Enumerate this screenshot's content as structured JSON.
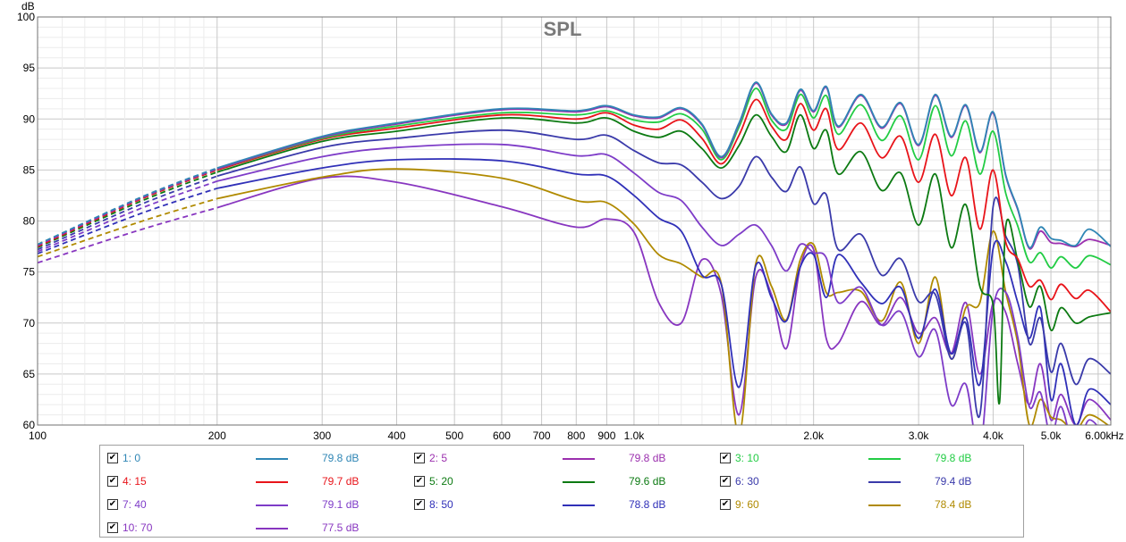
{
  "chart_data": {
    "type": "line",
    "title": "SPL",
    "ylabel": "dB",
    "xlabel_unit": "Hz",
    "x_scale": "log",
    "xlim": [
      100,
      6300
    ],
    "ylim": [
      60,
      100
    ],
    "grid": true,
    "legend_placement": "bottom",
    "y_ticks": [
      "60",
      "65",
      "70",
      "75",
      "80",
      "85",
      "90",
      "95",
      "100"
    ],
    "x_ticks": [
      {
        "v": 100,
        "label": "100"
      },
      {
        "v": 200,
        "label": "200"
      },
      {
        "v": 300,
        "label": "300"
      },
      {
        "v": 400,
        "label": "400"
      },
      {
        "v": 500,
        "label": "500"
      },
      {
        "v": 600,
        "label": "600"
      },
      {
        "v": 700,
        "label": "700"
      },
      {
        "v": 800,
        "label": "800"
      },
      {
        "v": 900,
        "label": "900"
      },
      {
        "v": 1000,
        "label": "1.0k"
      },
      {
        "v": 2000,
        "label": "2.0k"
      },
      {
        "v": 3000,
        "label": "3.0k"
      },
      {
        "v": 4000,
        "label": "4.0k"
      },
      {
        "v": 5000,
        "label": "5.0k"
      },
      {
        "v": 6000,
        "label": "6.00k"
      }
    ],
    "x_minor": [
      110,
      120,
      130,
      140,
      150,
      160,
      170,
      180,
      190,
      1100,
      1200,
      1300,
      1400,
      1500,
      1600,
      1700,
      1800,
      1900
    ],
    "dashed_until_hz": 200,
    "series": [
      {
        "name": "1: 0",
        "value": "79.8 dB",
        "color": "#2f86b5",
        "x": [
          100,
          150,
          200,
          300,
          400,
          600,
          800,
          900,
          1000,
          1100,
          1200,
          1300,
          1400,
          1500,
          1600,
          1700,
          1800,
          1900,
          2000,
          2100,
          2200,
          2400,
          2600,
          2800,
          3000,
          3200,
          3400,
          3600,
          3800,
          4000,
          4200,
          4400,
          4600,
          4800,
          5000,
          5200,
          5500,
          5800,
          6300
        ],
        "y": [
          77.7,
          82.4,
          85.2,
          88.3,
          89.6,
          91.0,
          90.8,
          91.3,
          90.4,
          90.2,
          91.1,
          89.5,
          86.3,
          89.6,
          93.6,
          90.5,
          89.6,
          92.9,
          90.8,
          93.2,
          89.3,
          92.4,
          89.2,
          91.6,
          87.5,
          92.4,
          88.3,
          91.4,
          86.8,
          90.7,
          84.5,
          81.2,
          77.4,
          79.4,
          78.3,
          78.1,
          77.6,
          79.2,
          77.5
        ]
      },
      {
        "name": "2: 5",
        "value": "79.8 dB",
        "color": "#9b2fae",
        "x": [
          100,
          150,
          200,
          300,
          400,
          600,
          800,
          900,
          1000,
          1100,
          1200,
          1300,
          1400,
          1500,
          1600,
          1700,
          1800,
          1900,
          2000,
          2100,
          2200,
          2400,
          2600,
          2800,
          3000,
          3200,
          3400,
          3600,
          3800,
          4000,
          4200,
          4400,
          4600,
          4800,
          5000,
          5200,
          5500,
          5800,
          6300
        ],
        "y": [
          77.6,
          82.3,
          85.1,
          88.2,
          89.5,
          90.9,
          90.7,
          91.2,
          90.3,
          90.1,
          91.0,
          89.4,
          86.2,
          89.5,
          93.5,
          90.4,
          89.5,
          92.8,
          90.7,
          93.1,
          89.2,
          92.3,
          89.1,
          91.5,
          87.4,
          92.3,
          88.2,
          91.3,
          86.7,
          90.6,
          84.4,
          81.1,
          77.3,
          79.0,
          77.9,
          77.8,
          77.5,
          78.2,
          77.6
        ]
      },
      {
        "name": "3: 10",
        "value": "79.8 dB",
        "color": "#22cc44",
        "x": [
          100,
          150,
          200,
          300,
          400,
          600,
          800,
          900,
          1000,
          1100,
          1200,
          1300,
          1400,
          1500,
          1600,
          1700,
          1800,
          1900,
          2000,
          2100,
          2200,
          2400,
          2600,
          2800,
          3000,
          3200,
          3400,
          3600,
          3800,
          4000,
          4200,
          4400,
          4600,
          4800,
          5000,
          5200,
          5500,
          5800,
          6300
        ],
        "y": [
          77.7,
          82.3,
          85.1,
          88.1,
          89.3,
          90.6,
          90.4,
          90.8,
          89.9,
          89.7,
          90.5,
          89.0,
          86.0,
          89.2,
          93.0,
          89.9,
          89.0,
          92.4,
          90.1,
          92.3,
          88.5,
          91.4,
          87.9,
          90.3,
          86.0,
          91.3,
          86.4,
          89.8,
          84.6,
          88.8,
          82.7,
          79.5,
          76.0,
          76.9,
          75.4,
          76.5,
          75.4,
          76.6,
          75.7
        ]
      },
      {
        "name": "4: 15",
        "value": "79.7 dB",
        "color": "#e8141a",
        "x": [
          100,
          150,
          200,
          300,
          400,
          600,
          800,
          900,
          1000,
          1100,
          1200,
          1300,
          1400,
          1500,
          1600,
          1700,
          1800,
          1900,
          2000,
          2100,
          2200,
          2400,
          2600,
          2800,
          3000,
          3200,
          3400,
          3600,
          3800,
          4000,
          4200,
          4400,
          4600,
          4800,
          5000,
          5200,
          5500,
          5800,
          6300
        ],
        "y": [
          77.5,
          82.2,
          85.0,
          88.0,
          89.1,
          90.4,
          90.0,
          90.6,
          89.4,
          89.0,
          89.9,
          88.1,
          85.6,
          88.4,
          91.9,
          89.3,
          88.0,
          91.5,
          88.9,
          91.0,
          87.0,
          89.6,
          86.2,
          88.3,
          83.8,
          88.5,
          82.5,
          86.2,
          79.2,
          85.0,
          77.9,
          76.3,
          73.6,
          74.2,
          72.3,
          73.8,
          72.4,
          73.2,
          71.1
        ]
      },
      {
        "name": "5: 20",
        "value": "79.6 dB",
        "color": "#0c7a12",
        "x": [
          100,
          150,
          200,
          300,
          400,
          600,
          800,
          900,
          1000,
          1100,
          1200,
          1300,
          1400,
          1500,
          1600,
          1700,
          1800,
          1900,
          2000,
          2100,
          2200,
          2400,
          2600,
          2800,
          3000,
          3200,
          3400,
          3600,
          3800,
          4000,
          4100,
          4200,
          4400,
          4600,
          4800,
          5000,
          5200,
          5500,
          5800,
          6300
        ],
        "y": [
          77.4,
          82.0,
          84.8,
          87.8,
          88.8,
          90.1,
          89.6,
          90.1,
          88.8,
          88.2,
          88.8,
          87.1,
          85.2,
          87.4,
          90.4,
          88.3,
          86.8,
          90.4,
          87.1,
          88.9,
          84.6,
          86.8,
          83.0,
          84.7,
          79.6,
          84.6,
          77.4,
          81.6,
          73.6,
          71.8,
          62.2,
          79.5,
          76.1,
          71.6,
          73.6,
          69.3,
          71.5,
          70.0,
          70.6,
          71.0
        ]
      },
      {
        "name": "6: 30",
        "value": "79.4 dB",
        "color": "#3a3aaa",
        "x": [
          100,
          150,
          200,
          300,
          400,
          600,
          800,
          900,
          1000,
          1100,
          1200,
          1300,
          1400,
          1500,
          1600,
          1700,
          1800,
          1900,
          2000,
          2100,
          2200,
          2400,
          2600,
          2800,
          3000,
          3200,
          3400,
          3600,
          3800,
          4000,
          4200,
          4400,
          4600,
          4800,
          5000,
          5200,
          5500,
          5800,
          6300
        ],
        "y": [
          77.2,
          81.7,
          84.4,
          87.2,
          88.1,
          88.9,
          88.0,
          88.4,
          86.9,
          85.7,
          85.5,
          83.8,
          82.2,
          83.4,
          86.3,
          84.3,
          82.9,
          85.3,
          81.7,
          82.6,
          77.2,
          78.7,
          74.7,
          76.3,
          72.1,
          72.8,
          66.5,
          70.0,
          61.0,
          81.4,
          78.5,
          75.7,
          68.0,
          70.5,
          65.2,
          68.0,
          64.0,
          66.5,
          65.0
        ]
      },
      {
        "name": "7: 40",
        "value": "79.1 dB",
        "color": "#7e3cc8",
        "x": [
          100,
          150,
          200,
          300,
          400,
          600,
          800,
          900,
          1000,
          1100,
          1200,
          1300,
          1400,
          1500,
          1600,
          1700,
          1800,
          1900,
          2000,
          2100,
          2200,
          2400,
          2600,
          2800,
          3000,
          3200,
          3400,
          3600,
          3800,
          4000,
          4200,
          4400,
          4600,
          4800,
          5000,
          5200,
          5500,
          5800,
          6300
        ],
        "y": [
          77.0,
          81.3,
          83.9,
          86.3,
          87.2,
          87.5,
          86.4,
          86.5,
          84.7,
          82.8,
          82.0,
          79.4,
          77.6,
          78.7,
          79.6,
          77.6,
          75.1,
          77.7,
          76.9,
          76.4,
          72.0,
          73.5,
          69.8,
          71.1,
          66.7,
          69.3,
          62.0,
          64.0,
          57.5,
          71.4,
          73.0,
          68.6,
          61.8,
          63.2,
          58.7,
          61.8,
          57.3,
          60.5,
          58.0
        ]
      },
      {
        "name": "8: 50",
        "value": "78.8 dB",
        "color": "#3030b8",
        "x": [
          100,
          150,
          200,
          300,
          400,
          600,
          800,
          900,
          1000,
          1100,
          1200,
          1300,
          1400,
          1500,
          1600,
          1700,
          1800,
          1900,
          2000,
          2100,
          2200,
          2400,
          2600,
          2800,
          3000,
          3200,
          3400,
          3600,
          3800,
          4000,
          4200,
          4400,
          4600,
          4800,
          5000,
          5200,
          5500,
          5800,
          6300
        ],
        "y": [
          76.8,
          80.8,
          83.2,
          85.2,
          86.0,
          85.9,
          84.6,
          84.4,
          82.5,
          80.3,
          79.0,
          74.7,
          73.8,
          63.7,
          75.6,
          72.5,
          70.2,
          75.5,
          76.7,
          72.5,
          76.7,
          74.0,
          71.9,
          73.5,
          68.5,
          73.3,
          67.0,
          70.5,
          64.0,
          77.3,
          76.0,
          72.0,
          68.5,
          71.5,
          62.5,
          66.0,
          60.0,
          63.5,
          62.0
        ]
      },
      {
        "name": "9: 60",
        "value": "78.4 dB",
        "color": "#b08a00",
        "x": [
          100,
          150,
          200,
          300,
          400,
          600,
          800,
          900,
          1000,
          1100,
          1200,
          1300,
          1400,
          1500,
          1600,
          1700,
          1800,
          1900,
          2000,
          2100,
          2200,
          2400,
          2600,
          2800,
          3000,
          3200,
          3400,
          3600,
          3800,
          4000,
          4200,
          4400,
          4600,
          4800,
          5000,
          5200,
          5500,
          5800,
          6300
        ],
        "y": [
          76.5,
          80.0,
          82.2,
          84.3,
          85.1,
          84.2,
          82.0,
          81.8,
          79.7,
          76.7,
          75.8,
          74.5,
          73.9,
          59.0,
          75.8,
          73.6,
          70.3,
          76.2,
          77.7,
          73.0,
          73.0,
          73.1,
          70.2,
          74.0,
          68.0,
          74.5,
          66.5,
          71.5,
          72.0,
          79.0,
          73.0,
          68.0,
          60.0,
          62.5,
          60.8,
          60.5,
          59.5,
          61.0,
          59.8
        ]
      },
      {
        "name": "10: 70",
        "value": "77.5 dB",
        "color": "#8836c0",
        "x": [
          100,
          150,
          200,
          300,
          400,
          600,
          800,
          900,
          1000,
          1100,
          1200,
          1300,
          1400,
          1500,
          1600,
          1700,
          1800,
          1900,
          2000,
          2100,
          2200,
          2400,
          2600,
          2800,
          3000,
          3200,
          3400,
          3600,
          3800,
          4000,
          4200,
          4400,
          4600,
          4800,
          5000,
          5200,
          5500,
          5800,
          6300
        ],
        "y": [
          75.9,
          79.2,
          81.3,
          84.2,
          83.8,
          81.4,
          79.4,
          80.2,
          78.9,
          72.0,
          70.0,
          76.2,
          72.8,
          61.0,
          74.5,
          72.8,
          67.5,
          75.5,
          77.2,
          68.5,
          68.0,
          72.1,
          69.8,
          72.5,
          69.0,
          70.5,
          67.0,
          72.0,
          65.0,
          72.0,
          71.0,
          66.0,
          62.0,
          66.0,
          60.5,
          63.0,
          60.0,
          62.5,
          60.5
        ]
      }
    ]
  }
}
